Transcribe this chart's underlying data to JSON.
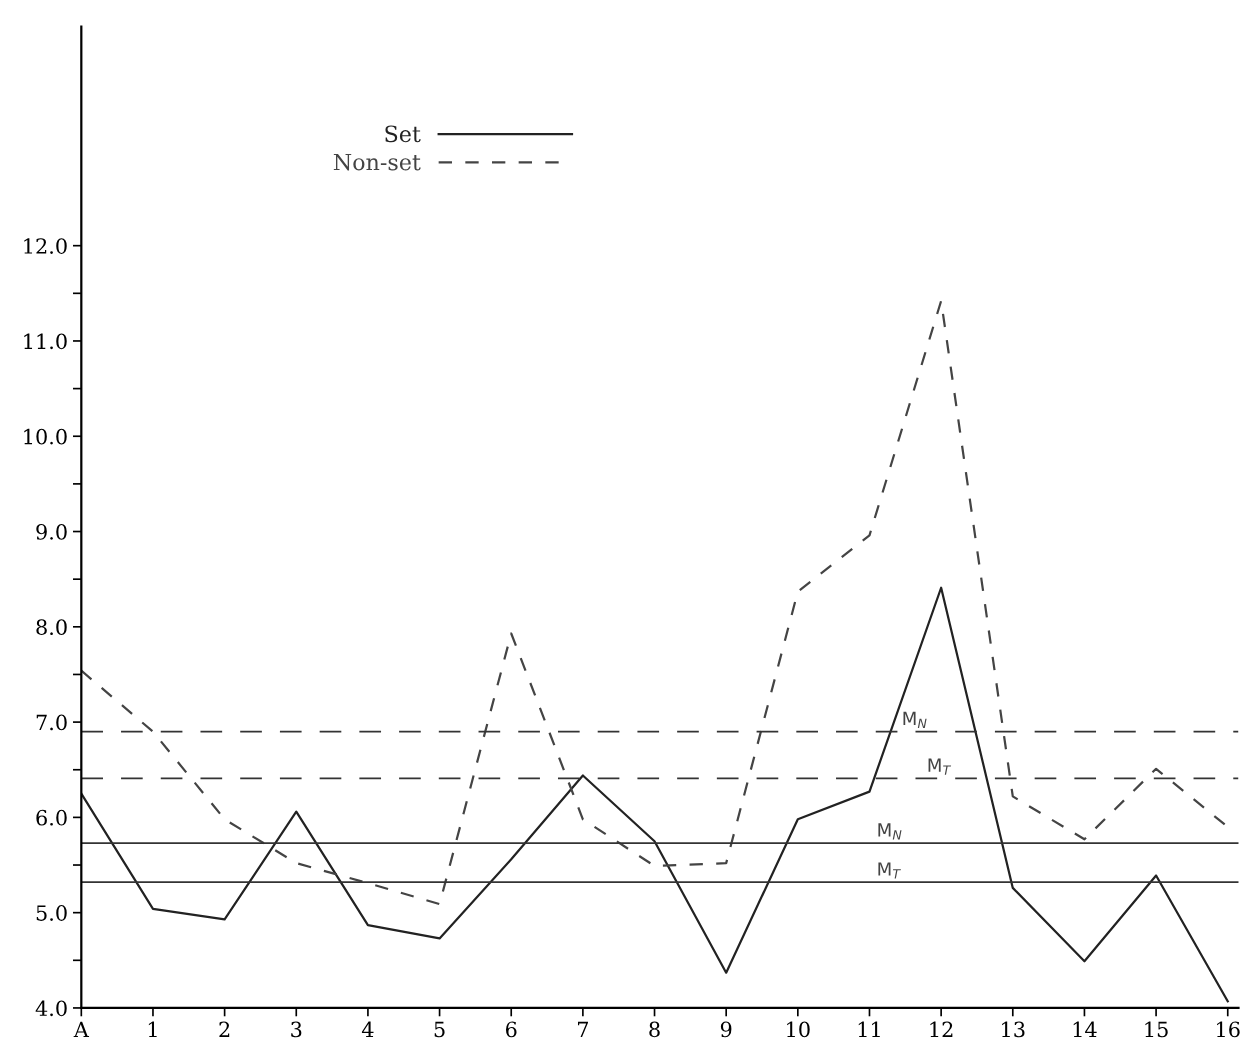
{
  "chart_data": {
    "type": "line",
    "categories": [
      "A",
      "1",
      "2",
      "3",
      "4",
      "5",
      "6",
      "7",
      "8",
      "9",
      "10",
      "11",
      "12",
      "13",
      "14",
      "15",
      "16"
    ],
    "series": [
      {
        "name": "Set",
        "color": "#222222",
        "line_style": "solid",
        "values": [
          6.25,
          5.04,
          4.93,
          6.06,
          4.87,
          4.73,
          5.56,
          6.44,
          5.75,
          4.37,
          5.98,
          6.27,
          8.41,
          5.26,
          4.49,
          5.39,
          4.07
        ]
      },
      {
        "name": "Non-set",
        "color": "#444444",
        "line_style": "dashed",
        "values": [
          7.54,
          6.9,
          5.98,
          5.52,
          5.31,
          5.09,
          7.93,
          5.98,
          5.49,
          5.52,
          8.37,
          8.96,
          11.42,
          6.22,
          5.77,
          6.51,
          5.9
        ]
      }
    ],
    "ref_lines": [
      {
        "axis": "y",
        "value": 6.9,
        "label": "M$_{N}$",
        "line_style": "dashed",
        "color": "#333333"
      },
      {
        "axis": "y",
        "value": 6.41,
        "label": "M$_{T}$",
        "line_style": "dashed",
        "color": "#333333"
      },
      {
        "axis": "y",
        "value": 5.73,
        "label": "M$_{N}$",
        "line_style": "solid",
        "color": "#333333"
      },
      {
        "axis": "y",
        "value": 5.32,
        "label": "M$_{T}$",
        "line_style": "solid",
        "color": "#333333"
      }
    ],
    "ylim": [
      4.0,
      14.3
    ],
    "yticks": [
      {
        "value": 4.0,
        "label": "4.0"
      },
      {
        "value": 4.5,
        "label": null
      },
      {
        "value": 5.0,
        "label": "5.0"
      },
      {
        "value": 5.5,
        "label": null
      },
      {
        "value": 6.0,
        "label": "6.0"
      },
      {
        "value": 6.5,
        "label": null
      },
      {
        "value": 7.0,
        "label": "7.0"
      },
      {
        "value": 7.5,
        "label": null
      },
      {
        "value": 8.0,
        "label": "8.0"
      },
      {
        "value": 8.5,
        "label": null
      },
      {
        "value": 9.0,
        "label": "9.0"
      },
      {
        "value": 9.5,
        "label": null
      },
      {
        "value": 10.0,
        "label": "10.0"
      },
      {
        "value": 10.5,
        "label": null
      },
      {
        "value": 11.0,
        "label": "11.0"
      },
      {
        "value": 11.5,
        "label": null
      },
      {
        "value": 12.0,
        "label": "12.0"
      }
    ],
    "grid": false,
    "legend": "top",
    "marker": "none"
  }
}
